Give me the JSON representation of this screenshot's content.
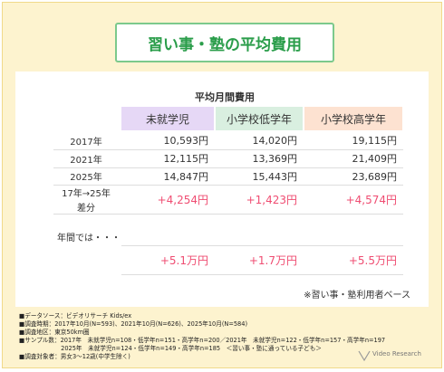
{
  "title": "習い事・塾の平均費用",
  "table": {
    "caption": "平均月間費用",
    "columns": [
      "未就学児",
      "小学校低学年",
      "小学校高学年"
    ],
    "rows": [
      {
        "label": [
          "2017年"
        ],
        "cells": [
          "10,593円",
          "14,020円",
          "19,115円"
        ]
      },
      {
        "label": [
          "2021年"
        ],
        "cells": [
          "12,115円",
          "13,369円",
          "21,409円"
        ]
      },
      {
        "label": [
          "2025年"
        ],
        "cells": [
          "14,847円",
          "15,443円",
          "23,689円"
        ]
      },
      {
        "label": [
          "17年→25年",
          "差分"
        ],
        "cells": [
          "+4,254円",
          "+1,423円",
          "+4,574円"
        ]
      }
    ]
  },
  "annual": {
    "label": "年間では・・・",
    "cells": [
      "+5.1万円",
      "+1.7万円",
      "+5.5万円"
    ]
  },
  "note": "※習い事・塾利用者ベース",
  "footnotes": [
    "■データソース：ビデオリサーチ Kids/ex",
    "■調査時期：2017年10月(N=593)、2021年10月(N=626)、2025年10月(N=584)",
    "■調査地区：東京50km圏",
    "■サンプル数：2017年　未就学児n=108・低学年n=151・高学年n=200／2021年　未就学児n=122・低学年n=157・高学年n=197",
    "　　　　　　　2025年　未就学児n=124・低学年n=149・高学年n=185　＜習い事・塾に通っている子ども＞",
    "■調査対象者：男女3～12歳(中学生除く)"
  ],
  "logo": "Video Research"
}
